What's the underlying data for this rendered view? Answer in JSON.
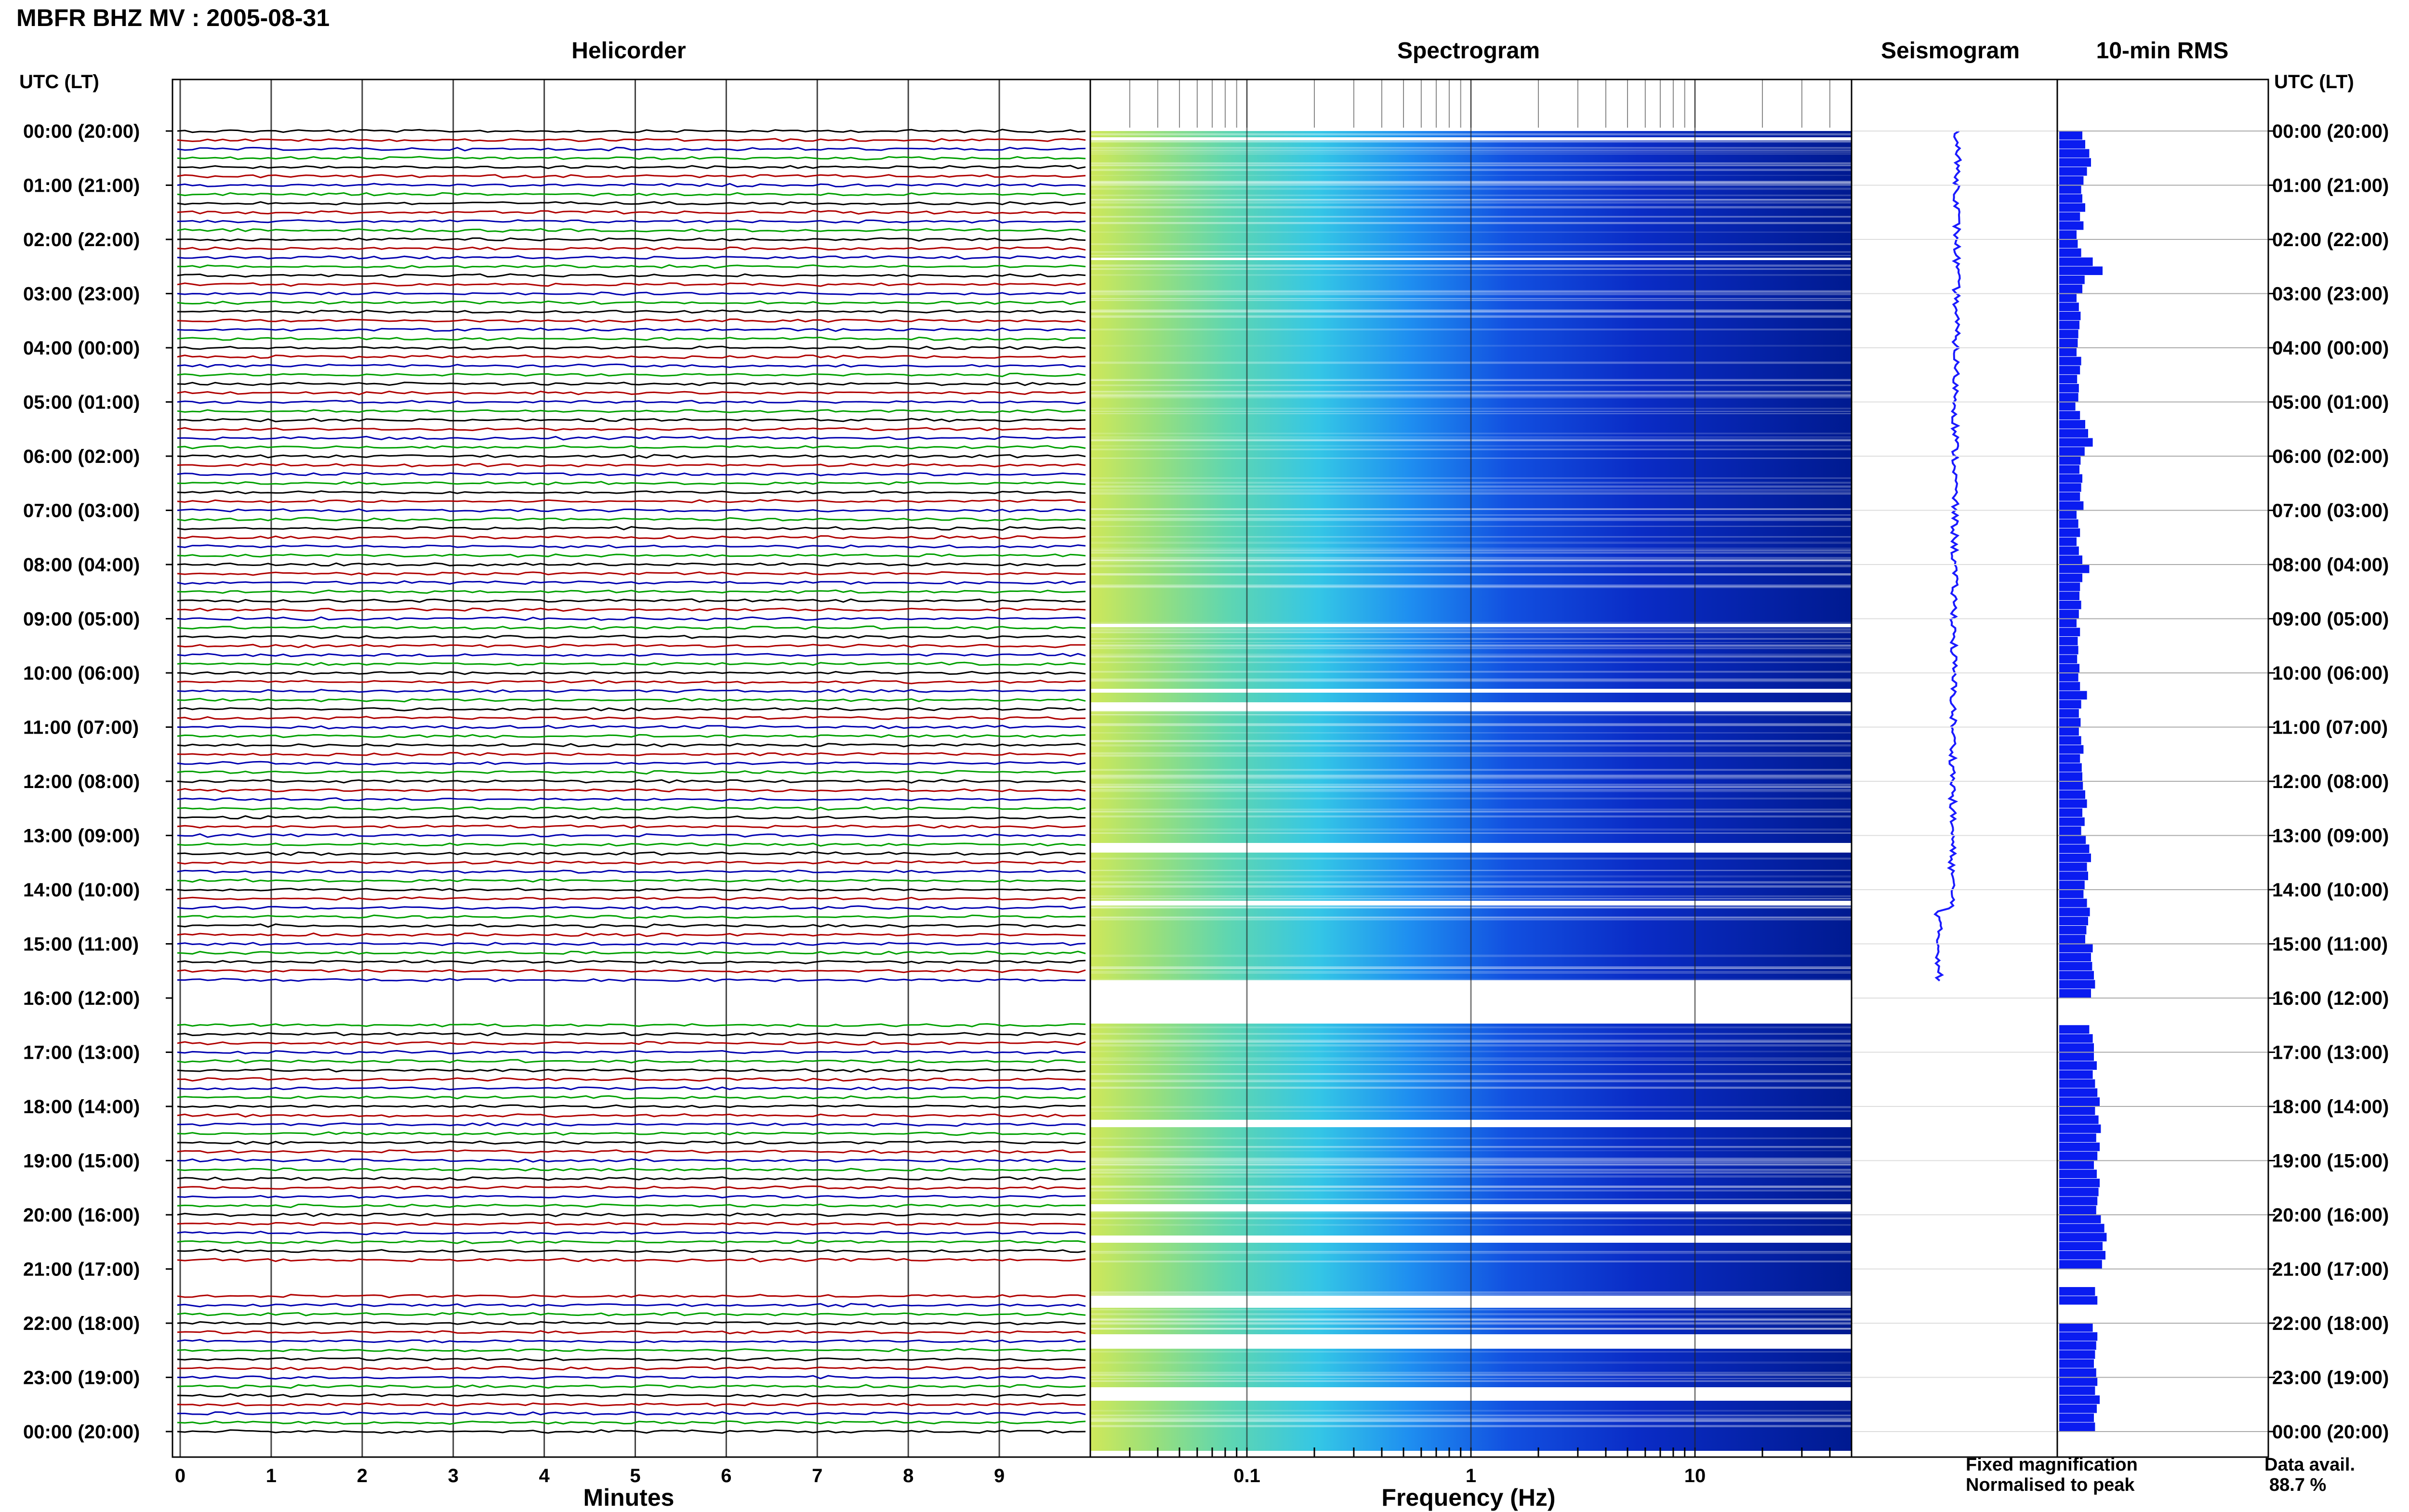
{
  "header": {
    "title": "MBFR BHZ MV : 2005-08-31"
  },
  "panels": {
    "helicorder": "Helicorder",
    "spectrogram": "Spectrogram",
    "seismogram": "Seismogram",
    "rms": "10-min RMS"
  },
  "axis_headers": {
    "left": "UTC (LT)",
    "right": "UTC (LT)"
  },
  "axis_titles": {
    "helicorder_x": "Minutes",
    "spectrogram_x": "Frequency (Hz)"
  },
  "legend": {
    "fixed": "Fixed magnification",
    "normalised": "Normalised to peak",
    "fixed_color": "#1a1aff",
    "normalised_color": "#ff1a1a"
  },
  "availability": {
    "label": "Data avail.",
    "value": "88.7 %"
  },
  "colors": {
    "trace_cycle": [
      "#000000",
      "#b00000",
      "#0000b0",
      "#00a000"
    ],
    "spectro_low": "#f5f56a",
    "spectro_mid": "#3ad6e8",
    "spectro_high": "#0a20c8",
    "spectro_deep": "#00108a",
    "rms_bar": "#0a1cf0"
  },
  "chart_data": [
    {
      "type": "line",
      "title": "Helicorder",
      "xlabel": "Minutes",
      "ylabel": "UTC (LT)",
      "x_ticks": [
        "0",
        "1",
        "2",
        "3",
        "4",
        "5",
        "6",
        "7",
        "8",
        "9"
      ],
      "xlim": [
        0,
        10
      ],
      "y_tick_labels": [
        "00:00 (20:00)",
        "01:00 (21:00)",
        "02:00 (22:00)",
        "03:00 (23:00)",
        "04:00 (00:00)",
        "05:00 (01:00)",
        "06:00 (02:00)",
        "07:00 (03:00)",
        "08:00 (04:00)",
        "09:00 (05:00)",
        "10:00 (06:00)",
        "11:00 (07:00)",
        "12:00 (08:00)",
        "13:00 (09:00)",
        "14:00 (10:00)",
        "15:00 (11:00)",
        "16:00 (12:00)",
        "17:00 (13:00)",
        "18:00 (14:00)",
        "19:00 (15:00)",
        "20:00 (16:00)",
        "21:00 (17:00)",
        "22:00 (18:00)",
        "23:00 (19:00)",
        "00:00 (20:00)"
      ],
      "lines_per_hour": 6,
      "line_minutes": 10
    },
    {
      "type": "heatmap",
      "title": "Spectrogram",
      "xlabel": "Frequency (Hz)",
      "x_scale": "log",
      "x_ticks": [
        "0.1",
        "1",
        "10"
      ],
      "xlim": [
        0.02,
        50
      ]
    },
    {
      "type": "line",
      "title": "Seismogram"
    },
    {
      "type": "bar",
      "title": "10-min RMS",
      "orientation": "horizontal",
      "note": "one bar per 10-minute window; missing windows left blank",
      "values": [
        0.4,
        0.45,
        0.52,
        0.55,
        0.48,
        0.42,
        0.38,
        0.4,
        0.45,
        0.36,
        0.42,
        0.3,
        0.32,
        0.38,
        0.58,
        0.75,
        0.44,
        0.4,
        0.3,
        0.34,
        0.37,
        0.35,
        0.33,
        0.32,
        0.3,
        0.38,
        0.36,
        0.31,
        0.34,
        0.33,
        0.28,
        0.36,
        0.45,
        0.5,
        0.58,
        0.44,
        0.37,
        0.35,
        0.4,
        0.38,
        0.36,
        0.42,
        0.3,
        0.33,
        0.36,
        0.3,
        0.34,
        0.4,
        0.52,
        0.4,
        0.36,
        0.35,
        0.38,
        0.34,
        0.3,
        0.36,
        0.32,
        0.33,
        0.31,
        0.35,
        0.33,
        0.36,
        0.48,
        0.38,
        0.34,
        0.37,
        0.34,
        0.38,
        0.42,
        0.36,
        0.39,
        0.4,
        0.41,
        0.45,
        0.48,
        0.4,
        0.44,
        0.38,
        0.46,
        0.52,
        0.55,
        0.48,
        0.5,
        0.44,
        0.42,
        0.48,
        0.53,
        0.5,
        0.47,
        0.45,
        0.58,
        0.55,
        0.57,
        0.6,
        0.62,
        0.55,
        null,
        null,
        null,
        0.52,
        0.58,
        0.6,
        0.6,
        0.65,
        0.58,
        0.62,
        0.66,
        0.7,
        0.62,
        0.68,
        0.72,
        0.64,
        0.7,
        0.66,
        0.6,
        0.65,
        0.7,
        0.68,
        0.66,
        0.64,
        0.72,
        0.78,
        0.82,
        0.75,
        0.8,
        0.74,
        null,
        null,
        0.62,
        0.66,
        null,
        null,
        0.58,
        0.66,
        0.64,
        0.62,
        0.6,
        0.64,
        0.66,
        0.62,
        0.7,
        0.65,
        0.6,
        0.62
      ]
    }
  ]
}
